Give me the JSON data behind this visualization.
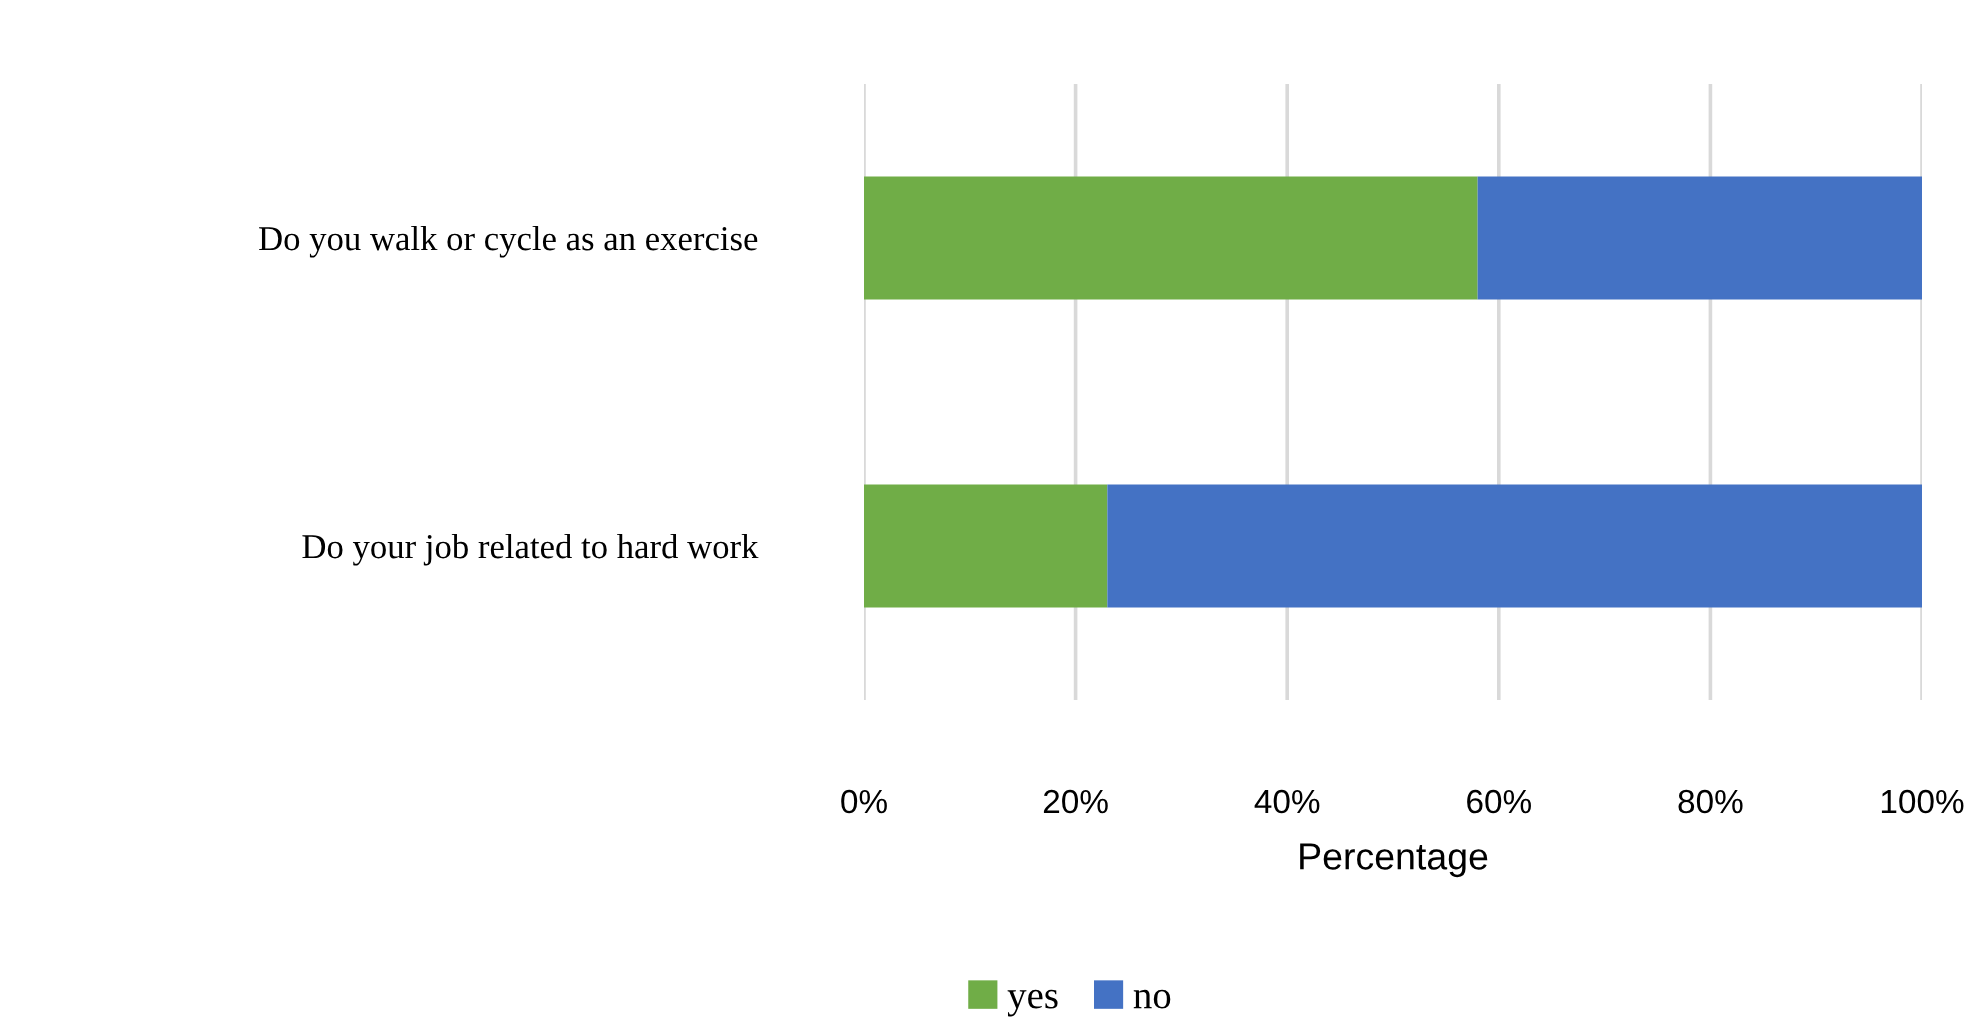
{
  "chart_data": {
    "type": "bar",
    "orientation": "horizontal",
    "stacked": true,
    "categories": [
      "Do you walk or cycle as an exercise",
      "Do your job related to hard work"
    ],
    "series": [
      {
        "name": "yes",
        "color": "#70ad47",
        "values": [
          58,
          23
        ]
      },
      {
        "name": "no",
        "color": "#4472c4",
        "values": [
          42,
          77
        ]
      }
    ],
    "xlabel": "Percentage",
    "xlim": [
      0,
      100
    ],
    "xticks": [
      {
        "value": 0,
        "label": "0%"
      },
      {
        "value": 20,
        "label": "20%"
      },
      {
        "value": 40,
        "label": "40%"
      },
      {
        "value": 60,
        "label": "60%"
      },
      {
        "value": 80,
        "label": "80%"
      },
      {
        "value": 100,
        "label": "100%"
      }
    ],
    "grid": "x",
    "legend": "bottom"
  }
}
